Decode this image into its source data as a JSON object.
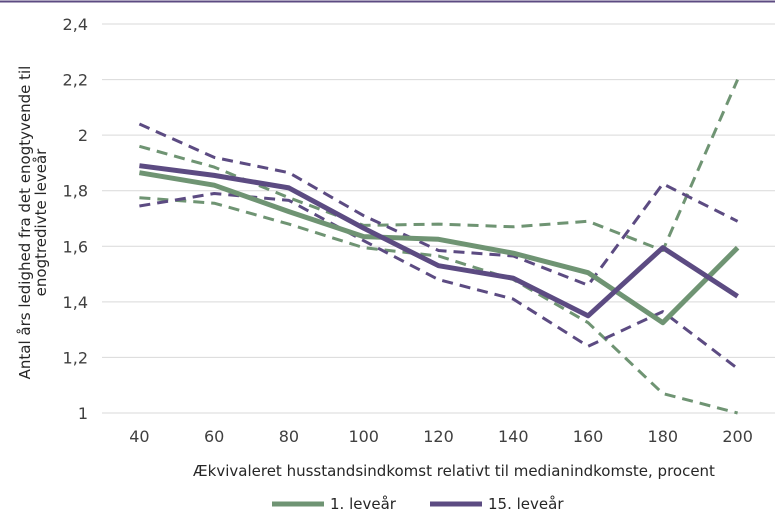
{
  "chart_data": {
    "type": "line",
    "xlabel": "Ækvivaleret husstandsindkomst relativt til medianindkomste, procent",
    "ylabel_lines": [
      "Antal års ledighed fra det enogtyvende til",
      "enogtredivte leveår"
    ],
    "x": [
      40,
      60,
      80,
      100,
      120,
      140,
      160,
      180,
      200
    ],
    "x_tick_labels": [
      "40",
      "60",
      "80",
      "100",
      "120",
      "140",
      "160",
      "180",
      "200"
    ],
    "ylim": [
      1,
      2.4
    ],
    "y_ticks": [
      1,
      1.2,
      1.4,
      1.6,
      1.8,
      2,
      2.2,
      2.4
    ],
    "y_tick_labels": [
      "1",
      "1,2",
      "1,4",
      "1,6",
      "1,8",
      "2",
      "2,2",
      "2,4"
    ],
    "grid": true,
    "legend_position": "bottom",
    "series": [
      {
        "name": "1. leveår",
        "color": "#6f9473",
        "values": [
          1.865,
          1.82,
          1.725,
          1.635,
          1.625,
          1.575,
          1.505,
          1.325,
          1.595
        ],
        "upper": [
          1.96,
          1.885,
          1.775,
          1.675,
          1.68,
          1.67,
          1.69,
          1.585,
          2.2
        ],
        "lower": [
          1.775,
          1.755,
          1.68,
          1.595,
          1.565,
          1.48,
          1.325,
          1.07,
          1.0
        ]
      },
      {
        "name": "15. leveår",
        "color": "#5c4b82",
        "values": [
          1.89,
          1.855,
          1.81,
          1.665,
          1.53,
          1.485,
          1.35,
          1.595,
          1.42
        ],
        "upper": [
          2.04,
          1.92,
          1.865,
          1.71,
          1.585,
          1.565,
          1.46,
          1.825,
          1.69
        ],
        "lower": [
          1.745,
          1.79,
          1.765,
          1.62,
          1.48,
          1.41,
          1.24,
          1.365,
          1.16
        ]
      }
    ]
  }
}
